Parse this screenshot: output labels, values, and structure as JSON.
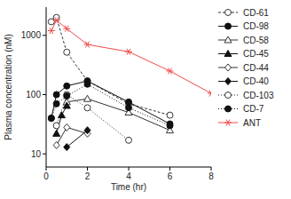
{
  "chart_data": {
    "type": "line",
    "x_label": "Time (hr)",
    "y_label": "Plasma concentration (nM)",
    "log": "y",
    "xlim": [
      0,
      8
    ],
    "xticks": [
      0,
      2,
      4,
      6,
      8
    ],
    "ylim": [
      6,
      3000
    ],
    "yticks": [
      10,
      100,
      1000
    ],
    "legend": "right",
    "series": [
      {
        "name": "CD-61",
        "color": "#333333",
        "marker": "circle-open",
        "line_style": "dashed",
        "x": [
          0.25,
          0.5,
          1,
          2,
          4,
          6
        ],
        "values": [
          1700,
          2000,
          520,
          170,
          70,
          45
        ]
      },
      {
        "name": "CD-98",
        "color": "#111111",
        "marker": "circle",
        "line_style": "solid",
        "x": [
          0.25,
          0.5,
          1,
          2,
          4,
          6
        ],
        "values": [
          40,
          100,
          140,
          170,
          75,
          32
        ]
      },
      {
        "name": "CD-58",
        "color": "#333333",
        "marker": "triangle-open",
        "line_style": "solid",
        "x": [
          1,
          2,
          4,
          6
        ],
        "values": [
          75,
          85,
          50,
          25
        ]
      },
      {
        "name": "CD-45",
        "color": "#111111",
        "marker": "triangle",
        "line_style": "solid",
        "x": [
          0.5,
          0.75,
          1
        ],
        "values": [
          22,
          45,
          65
        ]
      },
      {
        "name": "CD-44",
        "color": "#333333",
        "marker": "diamond-open",
        "line_style": "solid",
        "x": [
          0.5,
          1,
          2
        ],
        "values": [
          14,
          28,
          22
        ]
      },
      {
        "name": "CD-40",
        "color": "#111111",
        "marker": "diamond",
        "line_style": "solid",
        "x": [
          1,
          2
        ],
        "values": [
          13,
          25
        ]
      },
      {
        "name": "CD-103",
        "color": "#333333",
        "marker": "circle-open",
        "line_style": "dotted",
        "x": [
          0.5,
          1,
          2,
          4
        ],
        "values": [
          30,
          100,
          60,
          17
        ]
      },
      {
        "name": "CD-7",
        "color": "#111111",
        "marker": "circle",
        "line_style": "dotted",
        "x": [
          0.25,
          0.5,
          1,
          2,
          4,
          6
        ],
        "values": [
          40,
          70,
          95,
          150,
          60,
          30
        ]
      },
      {
        "name": "ANT",
        "color": "#f04a4a",
        "marker": "star",
        "line_style": "solid",
        "x": [
          0.25,
          0.5,
          1,
          2,
          4,
          6,
          8
        ],
        "values": [
          1200,
          1800,
          1300,
          700,
          530,
          250,
          105
        ]
      }
    ]
  }
}
